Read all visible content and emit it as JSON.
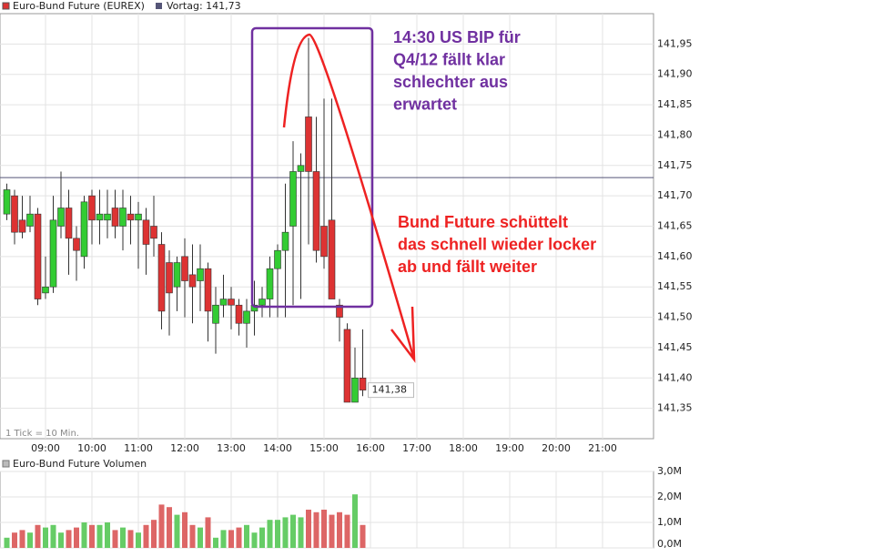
{
  "chart_data": {
    "type": "candlestick",
    "title": "Euro-Bund Future (EUREX)",
    "reference_line": {
      "value": 141.73,
      "label": "Vortag: 141,73"
    },
    "last_price": {
      "value": 141.38,
      "label": "141,38"
    },
    "tick_note": "1 Tick = 10 Min.",
    "up_color": "#33cc33",
    "down_color": "#dd3333",
    "grid": true,
    "x": [
      "08:10",
      "08:20",
      "08:30",
      "08:40",
      "08:50",
      "09:00",
      "09:10",
      "09:20",
      "09:30",
      "09:40",
      "09:50",
      "10:00",
      "10:10",
      "10:20",
      "10:30",
      "10:40",
      "10:50",
      "11:00",
      "11:10",
      "11:20",
      "11:30",
      "11:40",
      "11:50",
      "12:00",
      "12:10",
      "12:20",
      "12:30",
      "12:40",
      "12:50",
      "13:00",
      "13:10",
      "13:20",
      "13:30",
      "13:40",
      "13:50",
      "14:00",
      "14:10",
      "14:20",
      "14:30",
      "14:40",
      "14:50",
      "15:00",
      "15:10",
      "15:20",
      "15:30",
      "15:40",
      "15:50"
    ],
    "open": [
      141.67,
      141.7,
      141.66,
      141.65,
      141.67,
      141.54,
      141.55,
      141.65,
      141.68,
      141.63,
      141.6,
      141.7,
      141.66,
      141.66,
      141.68,
      141.65,
      141.67,
      141.66,
      141.66,
      141.65,
      141.62,
      141.59,
      141.55,
      141.6,
      141.57,
      141.56,
      141.58,
      141.49,
      141.52,
      141.53,
      141.52,
      141.49,
      141.51,
      141.52,
      141.53,
      141.58,
      141.61,
      141.65,
      141.74,
      141.83,
      141.74,
      141.65,
      141.66,
      141.52,
      141.48,
      141.36,
      141.4
    ],
    "high": [
      141.72,
      141.71,
      141.7,
      141.7,
      141.68,
      141.6,
      141.7,
      141.74,
      141.71,
      141.65,
      141.7,
      141.71,
      141.71,
      141.71,
      141.71,
      141.71,
      141.7,
      141.69,
      141.68,
      141.7,
      141.64,
      141.61,
      141.6,
      141.63,
      141.62,
      141.62,
      141.59,
      141.55,
      141.57,
      141.55,
      141.53,
      141.53,
      141.56,
      141.55,
      141.6,
      141.62,
      141.72,
      141.79,
      141.77,
      141.96,
      141.83,
      141.86,
      141.86,
      141.53,
      141.49,
      141.45,
      141.48
    ],
    "low": [
      141.66,
      141.62,
      141.63,
      141.64,
      141.52,
      141.53,
      141.54,
      141.63,
      141.57,
      141.56,
      141.58,
      141.62,
      141.62,
      141.63,
      141.63,
      141.61,
      141.62,
      141.58,
      141.57,
      141.6,
      141.48,
      141.47,
      141.51,
      141.5,
      141.49,
      141.51,
      141.46,
      141.44,
      141.5,
      141.48,
      141.47,
      141.45,
      141.47,
      141.5,
      141.5,
      141.5,
      141.5,
      141.52,
      141.53,
      141.62,
      141.59,
      141.58,
      141.53,
      141.46,
      141.36,
      141.36,
      141.37
    ],
    "close": [
      141.71,
      141.64,
      141.64,
      141.67,
      141.53,
      141.55,
      141.66,
      141.68,
      141.63,
      141.61,
      141.69,
      141.66,
      141.67,
      141.67,
      141.65,
      141.68,
      141.66,
      141.67,
      141.62,
      141.63,
      141.51,
      141.54,
      141.59,
      141.56,
      141.55,
      141.58,
      141.51,
      141.52,
      141.53,
      141.52,
      141.49,
      141.51,
      141.52,
      141.53,
      141.58,
      141.61,
      141.64,
      141.74,
      141.75,
      141.74,
      141.61,
      141.6,
      141.53,
      141.5,
      141.36,
      141.4,
      141.38
    ],
    "xlim": [
      "08:00",
      "22:00"
    ],
    "xticks": [
      "09:00",
      "10:00",
      "11:00",
      "12:00",
      "13:00",
      "14:00",
      "15:00",
      "16:00",
      "17:00",
      "18:00",
      "19:00",
      "20:00",
      "21:00"
    ],
    "ylim": [
      141.3,
      142.0
    ],
    "yticks": [
      {
        "value": 141.35,
        "label": "141,35"
      },
      {
        "value": 141.4,
        "label": "141,40"
      },
      {
        "value": 141.45,
        "label": "141,45"
      },
      {
        "value": 141.5,
        "label": "141,50"
      },
      {
        "value": 141.55,
        "label": "141,55"
      },
      {
        "value": 141.6,
        "label": "141,60"
      },
      {
        "value": 141.65,
        "label": "141,65"
      },
      {
        "value": 141.7,
        "label": "141,70"
      },
      {
        "value": 141.75,
        "label": "141,75"
      },
      {
        "value": 141.8,
        "label": "141,80"
      },
      {
        "value": 141.85,
        "label": "141,85"
      },
      {
        "value": 141.9,
        "label": "141,90"
      },
      {
        "value": 141.95,
        "label": "141,95"
      }
    ],
    "annotations": [
      {
        "lines": [
          "14:30 US BIP für",
          "Q4/12 fällt klar",
          "schlechter aus",
          "erwartet"
        ],
        "color": "#7030a0"
      },
      {
        "lines": [
          "Bund Future schüttelt",
          "das schnell wieder locker",
          " ab und fällt weiter"
        ],
        "color": "#ee2222"
      }
    ],
    "volume": {
      "title": "Euro-Bund Future Volumen",
      "values": [
        0.4,
        0.6,
        0.7,
        0.6,
        0.9,
        0.8,
        0.9,
        0.6,
        0.7,
        0.8,
        1.0,
        0.9,
        0.9,
        1.0,
        0.7,
        0.8,
        0.7,
        0.6,
        0.9,
        1.1,
        1.7,
        1.6,
        1.3,
        1.4,
        0.9,
        0.8,
        1.2,
        0.4,
        0.7,
        0.7,
        0.8,
        0.9,
        0.6,
        0.8,
        1.1,
        1.1,
        1.2,
        1.3,
        1.2,
        1.5,
        1.4,
        1.5,
        1.3,
        1.4,
        1.3,
        2.1,
        0.9
      ],
      "ylim": [
        0,
        3
      ],
      "yticks": [
        {
          "value": 0,
          "label": "0,0M"
        },
        {
          "value": 1,
          "label": "1,0M"
        },
        {
          "value": 2,
          "label": "2,0M"
        },
        {
          "value": 3,
          "label": "3,0M"
        }
      ]
    }
  }
}
